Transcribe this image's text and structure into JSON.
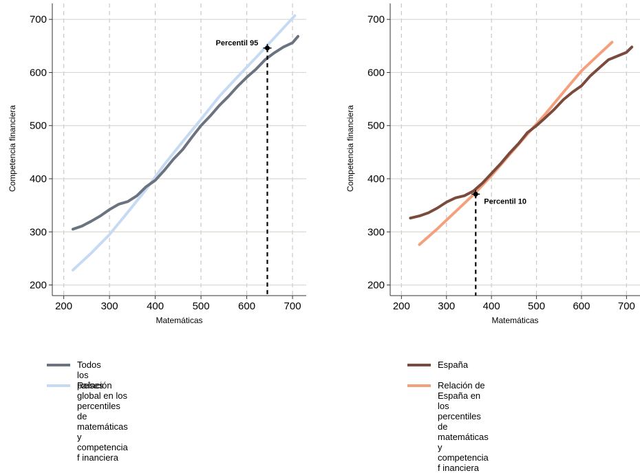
{
  "colors": {
    "todos": "#6b7280",
    "global": "#c6dbf3",
    "espana": "#7a4b3d",
    "espana_rel": "#f4a07c",
    "grid_dash": "#c8c8c8",
    "grid_solid": "#d9d7cf"
  },
  "chart_data": [
    {
      "type": "line",
      "title": "",
      "xlabel": "Matemáticas",
      "ylabel": "Competencia financiera",
      "xlim": [
        175,
        730
      ],
      "ylim": [
        180,
        730
      ],
      "xticks": [
        200,
        300,
        400,
        500,
        600,
        700
      ],
      "yticks": [
        200,
        300,
        400,
        500,
        600,
        700
      ],
      "grid": true,
      "legend_position": "bottom",
      "series": [
        {
          "name": "Todos los países",
          "color_key": "todos",
          "x": [
            220,
            240,
            260,
            280,
            300,
            320,
            340,
            360,
            380,
            400,
            420,
            440,
            460,
            480,
            500,
            520,
            540,
            560,
            580,
            600,
            620,
            640,
            660,
            680,
            700,
            712
          ],
          "y": [
            305,
            311,
            320,
            330,
            342,
            352,
            357,
            368,
            385,
            397,
            416,
            437,
            455,
            478,
            500,
            518,
            538,
            555,
            574,
            591,
            606,
            624,
            637,
            648,
            656,
            668
          ]
        },
        {
          "name": "Relación global en los percentiles de matemáticas\ny  competencia f inanciera",
          "color_key": "global",
          "x": [
            220,
            260,
            300,
            340,
            380,
            420,
            460,
            500,
            540,
            580,
            620,
            660,
            705
          ],
          "y": [
            228,
            260,
            295,
            337,
            380,
            427,
            470,
            512,
            555,
            592,
            628,
            665,
            707
          ]
        }
      ],
      "annotation": {
        "label": "Percentil 95",
        "x": 645,
        "y": 646,
        "drop_to_y": 180
      }
    },
    {
      "type": "line",
      "title": "",
      "xlabel": "Matemáticas",
      "ylabel": "Competencia financiera",
      "xlim": [
        175,
        730
      ],
      "ylim": [
        180,
        730
      ],
      "xticks": [
        200,
        300,
        400,
        500,
        600,
        700
      ],
      "yticks": [
        200,
        300,
        400,
        500,
        600,
        700
      ],
      "grid": true,
      "legend_position": "bottom",
      "series": [
        {
          "name": "España",
          "color_key": "espana",
          "x": [
            220,
            240,
            260,
            280,
            300,
            320,
            340,
            360,
            380,
            400,
            420,
            440,
            460,
            480,
            500,
            520,
            540,
            560,
            580,
            600,
            620,
            640,
            660,
            680,
            700,
            712
          ],
          "y": [
            326,
            330,
            336,
            345,
            356,
            364,
            368,
            377,
            392,
            410,
            428,
            448,
            466,
            487,
            500,
            515,
            531,
            549,
            563,
            575,
            594,
            609,
            624,
            631,
            638,
            648
          ]
        },
        {
          "name": "Relación de España en los percentiles de\nmatemáticas y  competencia f inanciera",
          "color_key": "espana_rel",
          "x": [
            240,
            280,
            320,
            360,
            400,
            440,
            480,
            520,
            560,
            600,
            640,
            668
          ],
          "y": [
            276,
            306,
            338,
            370,
            406,
            445,
            484,
            522,
            563,
            603,
            635,
            657
          ]
        }
      ],
      "annotation": {
        "label": "Percentil 10",
        "x": 365,
        "y": 371,
        "drop_to_y": 180
      }
    }
  ]
}
